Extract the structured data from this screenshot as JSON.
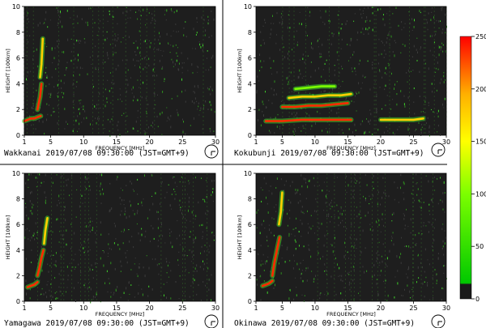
{
  "chart_data": [
    {
      "type": "heatmap",
      "station": "Wakkanai",
      "caption": "Wakkanai 2019/07/08 09:30:00 (JST=GMT+9)",
      "xlabel": "FREQUENCY [MHz]",
      "ylabel": "HEIGHT [100km]",
      "xlim": [
        1,
        30
      ],
      "ylim": [
        0,
        10
      ],
      "xticks": [
        "1",
        "5",
        "10",
        "15",
        "20",
        "25",
        "30"
      ],
      "yticks": [
        "0",
        "2",
        "4",
        "6",
        "8",
        "10"
      ],
      "traces": [
        {
          "x": [
            1.0,
            1.5,
            2.0,
            2.5,
            3.0,
            3.5
          ],
          "y": [
            1.1,
            1.2,
            1.3,
            1.3,
            1.4,
            1.5
          ],
          "intensity": "high"
        },
        {
          "x": [
            3.0,
            3.2,
            3.4,
            3.6
          ],
          "y": [
            2.0,
            2.5,
            3.0,
            4.0
          ],
          "intensity": "high"
        },
        {
          "x": [
            3.4,
            3.6,
            3.8
          ],
          "y": [
            4.5,
            5.5,
            7.5
          ],
          "intensity": "mid"
        }
      ]
    },
    {
      "type": "heatmap",
      "station": "Kokubunji",
      "caption": "Kokubunji 2019/07/08 09:30:00 (JST=GMT+9)",
      "xlabel": "FREQUENCY [MHz]",
      "ylabel": "HEIGHT [100km]",
      "xlim": [
        1,
        30
      ],
      "ylim": [
        0,
        10
      ],
      "xticks": [
        "1",
        "5",
        "10",
        "15",
        "20",
        "25",
        "30"
      ],
      "yticks": [
        "0",
        "2",
        "4",
        "6",
        "8",
        "10"
      ],
      "traces": [
        {
          "x": [
            2.5,
            5,
            8,
            11,
            14,
            15.5
          ],
          "y": [
            1.1,
            1.1,
            1.2,
            1.2,
            1.2,
            1.2
          ],
          "intensity": "high"
        },
        {
          "x": [
            20,
            21,
            22,
            23,
            24,
            25,
            26.5
          ],
          "y": [
            1.2,
            1.2,
            1.2,
            1.2,
            1.2,
            1.2,
            1.3
          ],
          "intensity": "mid"
        },
        {
          "x": [
            5,
            7,
            9,
            11,
            13,
            15
          ],
          "y": [
            2.2,
            2.2,
            2.3,
            2.3,
            2.4,
            2.5
          ],
          "intensity": "high"
        },
        {
          "x": [
            6,
            8,
            10,
            12,
            14,
            15.5
          ],
          "y": [
            2.9,
            3.0,
            3.0,
            3.1,
            3.1,
            3.2
          ],
          "intensity": "mid"
        },
        {
          "x": [
            7,
            9,
            11,
            13
          ],
          "y": [
            3.6,
            3.7,
            3.8,
            3.8
          ],
          "intensity": "low"
        }
      ]
    },
    {
      "type": "heatmap",
      "station": "Yamagawa",
      "caption": "Yamagawa 2019/07/08 09:30:00 (JST=GMT+9)",
      "xlabel": "FREQUENCY [MHz]",
      "ylabel": "HEIGHT [100km]",
      "xlim": [
        1,
        30
      ],
      "ylim": [
        0,
        10
      ],
      "xticks": [
        "1",
        "5",
        "10",
        "15",
        "20",
        "25",
        "30"
      ],
      "yticks": [
        "0",
        "2",
        "4",
        "6",
        "8",
        "10"
      ],
      "traces": [
        {
          "x": [
            1.5,
            2.0,
            2.5,
            3.0
          ],
          "y": [
            1.1,
            1.2,
            1.3,
            1.5
          ],
          "intensity": "high"
        },
        {
          "x": [
            3.0,
            3.3,
            3.6,
            3.9
          ],
          "y": [
            2.0,
            2.6,
            3.4,
            4.0
          ],
          "intensity": "high"
        },
        {
          "x": [
            4.0,
            4.2,
            4.5
          ],
          "y": [
            4.5,
            5.5,
            6.5
          ],
          "intensity": "mid"
        }
      ]
    },
    {
      "type": "heatmap",
      "station": "Okinawa",
      "caption": "Okinawa 2019/07/08 09:30:00 (JST=GMT+9)",
      "xlabel": "FREQUENCY [MHz]",
      "ylabel": "HEIGHT [100km]",
      "xlim": [
        1,
        30
      ],
      "ylim": [
        0,
        10
      ],
      "xticks": [
        "1",
        "5",
        "10",
        "15",
        "20",
        "25",
        "30"
      ],
      "yticks": [
        "0",
        "2",
        "4",
        "6",
        "8",
        "10"
      ],
      "traces": [
        {
          "x": [
            2.0,
            2.5,
            3.0,
            3.5
          ],
          "y": [
            1.2,
            1.3,
            1.4,
            1.6
          ],
          "intensity": "high"
        },
        {
          "x": [
            3.5,
            3.8,
            4.2,
            4.6
          ],
          "y": [
            2.0,
            3.0,
            4.0,
            5.0
          ],
          "intensity": "high"
        },
        {
          "x": [
            4.5,
            4.8,
            5.0
          ],
          "y": [
            6.0,
            7.0,
            8.5
          ],
          "intensity": "mid"
        }
      ]
    }
  ],
  "colorbar": {
    "range": [
      0,
      250
    ],
    "ticks": [
      "0",
      "50",
      "100",
      "150",
      "200",
      "250"
    ],
    "colors": [
      "#000000",
      "#3a3a3a",
      "#00e000",
      "#ffff00",
      "#ff0000"
    ]
  }
}
